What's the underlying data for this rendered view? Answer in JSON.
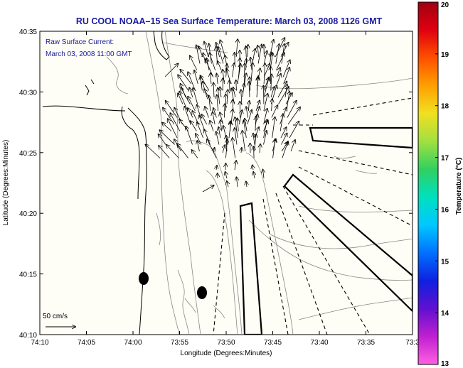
{
  "title": "RU COOL  NOAA–15  Sea Surface Temperature:  March 03, 2008 1126 GMT",
  "annotation": {
    "line1": "Raw Surface Current:",
    "line2": "March 03, 2008 11:00 GMT"
  },
  "axes": {
    "xlabel": "Longitude (Degrees:Minutes)",
    "ylabel": "Latitude (Degrees:Minutes)",
    "x_ticks": [
      "74:10",
      "74:05",
      "74:00",
      "73:55",
      "73:50",
      "73:45",
      "73:40",
      "73:35",
      "73:3"
    ],
    "y_ticks": [
      "40:35",
      "40:30",
      "40:25",
      "40:20",
      "40:15",
      "40:10"
    ]
  },
  "scale_label": "50 cm/s",
  "colorbar": {
    "label": "Temperature (°C)",
    "ticks": [
      "20",
      "19",
      "18",
      "17",
      "16",
      "15",
      "14",
      "13"
    ],
    "colors": [
      "#a00010",
      "#e00010",
      "#ff5000",
      "#ffa000",
      "#f0e020",
      "#a0e040",
      "#30d060",
      "#00e0c0",
      "#00c8ff",
      "#0070ff",
      "#1020e0",
      "#6010d0",
      "#c020d0",
      "#ff60e0"
    ]
  },
  "colors": {
    "title": "#1a1aa0",
    "plot_background": "#fefdf6",
    "coast": "#000000",
    "bathymetry": "#888888"
  }
}
